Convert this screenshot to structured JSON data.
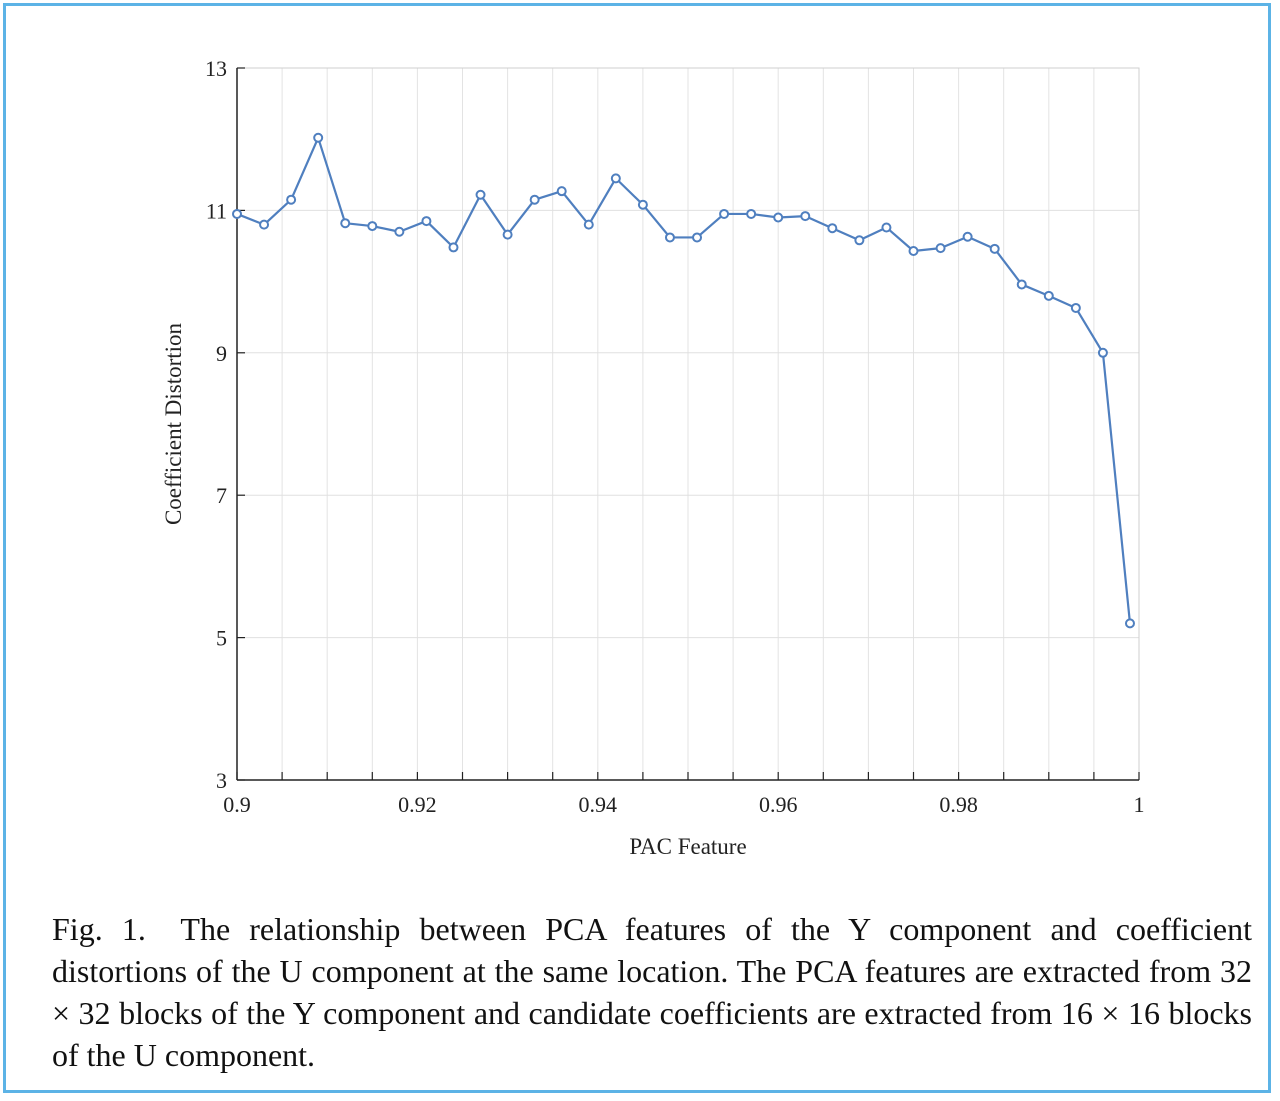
{
  "chart_data": {
    "type": "line",
    "xlabel": "PAC Feature",
    "ylabel": "Coefficient Distortion",
    "xlim": [
      0.9,
      1
    ],
    "ylim": [
      3,
      13
    ],
    "xticks": [
      0.9,
      0.92,
      0.94,
      0.96,
      0.98,
      1
    ],
    "xtick_labels": [
      "0.9",
      "0.92",
      "0.94",
      "0.96",
      "0.98",
      "1"
    ],
    "yticks": [
      3,
      5,
      7,
      9,
      11,
      13
    ],
    "ytick_labels": [
      "3",
      "5",
      "7",
      "9",
      "11",
      "13"
    ],
    "grid": true,
    "series": [
      {
        "name": "Coefficient Distortion",
        "color": "#4f7fbf",
        "x": [
          0.9,
          0.903,
          0.906,
          0.909,
          0.912,
          0.915,
          0.918,
          0.921,
          0.924,
          0.927,
          0.93,
          0.933,
          0.936,
          0.939,
          0.942,
          0.945,
          0.948,
          0.951,
          0.954,
          0.957,
          0.96,
          0.963,
          0.966,
          0.969,
          0.972,
          0.975,
          0.978,
          0.981,
          0.984,
          0.987,
          0.99,
          0.993,
          0.996,
          0.999
        ],
        "y": [
          10.95,
          10.8,
          11.15,
          12.02,
          10.82,
          10.78,
          10.7,
          10.85,
          10.48,
          11.22,
          10.66,
          11.15,
          11.27,
          10.8,
          11.45,
          11.08,
          10.62,
          10.62,
          10.95,
          10.95,
          10.9,
          10.92,
          10.75,
          10.58,
          10.76,
          10.43,
          10.47,
          10.63,
          10.46,
          9.96,
          9.8,
          9.63,
          9.0,
          5.2
        ]
      }
    ]
  },
  "caption": {
    "label": "Fig. 1.",
    "text": "The relationship between PCA features of the Y component and coefficient distortions of the U component at the same location. The PCA features are extracted from 32 × 32 blocks of the Y component and candidate coefficients are extracted from 16 × 16 blocks of the U component."
  }
}
